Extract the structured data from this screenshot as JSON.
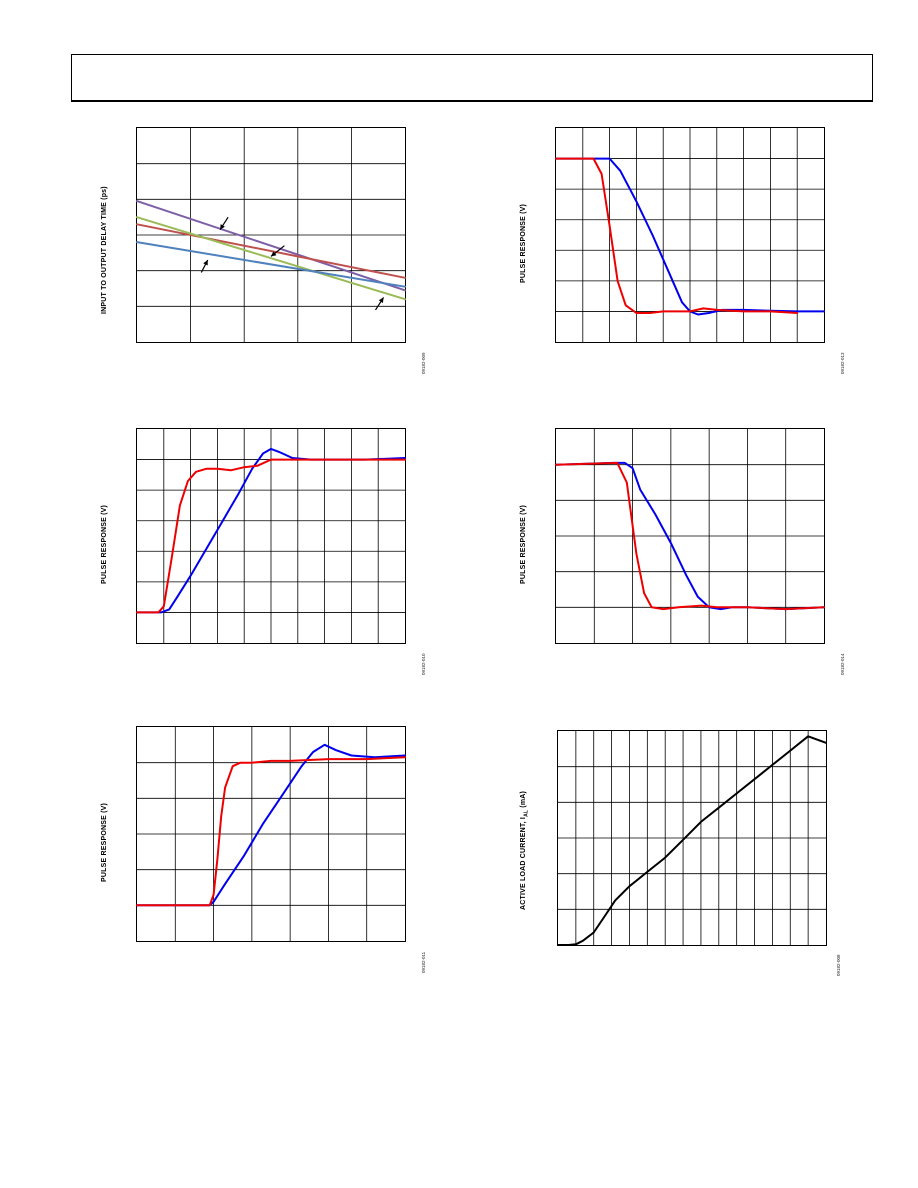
{
  "page": {
    "header": ""
  },
  "charts": [
    {
      "id": "p1",
      "ylabel": "INPUT TO OUTPUT DELAY TIME (ps)",
      "fig_id": "09182-009"
    },
    {
      "id": "p2",
      "ylabel": "PULSE RESPONSE (V)",
      "fig_id": "09182-013"
    },
    {
      "id": "p3",
      "ylabel": "PULSE RESPONSE (V)",
      "fig_id": "09182-010"
    },
    {
      "id": "p4",
      "ylabel": "PULSE RESPONSE (V)",
      "fig_id": "09182-014"
    },
    {
      "id": "p5",
      "ylabel": "PULSE RESPONSE (V)",
      "fig_id": "09182-011"
    },
    {
      "id": "p6",
      "ylabel_main": "ACTIVE LOAD CURRENT, I",
      "ylabel_sub": "AL",
      "ylabel_unit": " (mA)",
      "fig_id": "09182-008"
    }
  ],
  "chart_data": [
    {
      "type": "line",
      "title": "",
      "xlabel": "",
      "ylabel": "INPUT TO OUTPUT DELAY TIME (ps)",
      "xlim": [
        0,
        5
      ],
      "ylim": [
        0,
        6
      ],
      "grid": true,
      "series": [
        {
          "color": "#7d5fa8",
          "x": [
            0,
            5
          ],
          "y": [
            3.95,
            1.45
          ]
        },
        {
          "color": "#c0504d",
          "x": [
            0,
            5
          ],
          "y": [
            3.3,
            1.8
          ]
        },
        {
          "color": "#9bbb59",
          "x": [
            0,
            5
          ],
          "y": [
            3.5,
            1.2
          ]
        },
        {
          "color": "#4f81bd",
          "x": [
            0,
            5
          ],
          "y": [
            2.8,
            1.55
          ]
        }
      ],
      "annotations": [
        {
          "type": "arrow",
          "x1": 1.7,
          "y1": 3.5,
          "x2": 1.55,
          "y2": 3.15
        },
        {
          "type": "arrow",
          "x1": 2.75,
          "y1": 2.7,
          "x2": 2.5,
          "y2": 2.4
        },
        {
          "type": "arrow",
          "x1": 1.2,
          "y1": 1.95,
          "x2": 1.32,
          "y2": 2.3
        },
        {
          "type": "arrow",
          "x1": 4.45,
          "y1": 0.9,
          "x2": 4.6,
          "y2": 1.25
        }
      ]
    },
    {
      "type": "line",
      "title": "",
      "xlabel": "",
      "ylabel": "PULSE RESPONSE (V)",
      "xlim": [
        0,
        10
      ],
      "ylim": [
        0,
        7
      ],
      "grid": true,
      "series": [
        {
          "color": "#0000ee",
          "x": [
            0,
            2.0,
            2.4,
            3.0,
            3.6,
            4.2,
            4.7,
            5.0,
            5.3,
            5.7,
            6.2,
            7.0,
            8.0,
            9.0,
            10.0
          ],
          "y": [
            6.0,
            6.0,
            5.6,
            4.6,
            3.5,
            2.3,
            1.3,
            1.0,
            0.9,
            0.95,
            1.05,
            1.05,
            1.02,
            1.0,
            1.0
          ]
        },
        {
          "color": "#ee0000",
          "x": [
            0,
            1.4,
            1.7,
            2.0,
            2.3,
            2.6,
            3.0,
            3.5,
            4.0,
            5.0,
            5.5,
            6.0,
            7.0,
            8.0,
            9.0
          ],
          "y": [
            6.0,
            6.0,
            5.5,
            3.8,
            2.0,
            1.2,
            0.95,
            0.95,
            1.0,
            1.0,
            1.1,
            1.05,
            1.0,
            1.0,
            0.95
          ]
        }
      ]
    },
    {
      "type": "line",
      "title": "",
      "xlabel": "",
      "ylabel": "PULSE RESPONSE (V)",
      "xlim": [
        0,
        10
      ],
      "ylim": [
        0,
        7
      ],
      "grid": true,
      "series": [
        {
          "color": "#0000ee",
          "x": [
            0,
            0.9,
            1.2,
            1.5,
            2.0,
            2.6,
            3.2,
            3.8,
            4.3,
            4.7,
            5.0,
            5.3,
            5.8,
            6.5,
            7.5,
            8.5,
            10.0
          ],
          "y": [
            1.0,
            1.0,
            1.1,
            1.5,
            2.2,
            3.1,
            4.0,
            4.9,
            5.7,
            6.2,
            6.35,
            6.25,
            6.05,
            6.0,
            6.0,
            6.0,
            6.05
          ]
        },
        {
          "color": "#ee0000",
          "x": [
            0,
            0.8,
            1.0,
            1.3,
            1.6,
            1.9,
            2.2,
            2.6,
            3.0,
            3.5,
            4.0,
            4.5,
            5.0,
            6.0,
            8.0,
            10.0
          ],
          "y": [
            1.0,
            1.0,
            1.2,
            2.8,
            4.5,
            5.3,
            5.6,
            5.7,
            5.7,
            5.65,
            5.75,
            5.8,
            6.0,
            6.0,
            6.0,
            6.0
          ]
        }
      ]
    },
    {
      "type": "line",
      "title": "",
      "xlabel": "",
      "ylabel": "PULSE RESPONSE (V)",
      "xlim": [
        0,
        7
      ],
      "ylim": [
        0,
        6
      ],
      "grid": true,
      "series": [
        {
          "color": "#0000ee",
          "x": [
            0,
            1.5,
            1.8,
            2.0,
            2.2,
            2.6,
            3.0,
            3.4,
            3.7,
            4.0,
            4.3,
            4.6,
            5.0,
            6.0,
            7.0
          ],
          "y": [
            5.0,
            5.05,
            5.05,
            4.9,
            4.3,
            3.6,
            2.8,
            1.9,
            1.3,
            1.0,
            0.95,
            1.0,
            1.0,
            0.95,
            1.0
          ]
        },
        {
          "color": "#ee0000",
          "x": [
            0,
            1.6,
            1.85,
            2.1,
            2.3,
            2.5,
            2.8,
            3.2,
            3.8,
            4.2,
            5.0,
            6.0,
            7.0
          ],
          "y": [
            5.0,
            5.05,
            4.5,
            2.5,
            1.4,
            1.0,
            0.95,
            1.0,
            1.05,
            1.0,
            1.0,
            0.95,
            1.0
          ]
        }
      ]
    },
    {
      "type": "line",
      "title": "",
      "xlabel": "",
      "ylabel": "PULSE RESPONSE (V)",
      "xlim": [
        0,
        7
      ],
      "ylim": [
        0,
        6
      ],
      "grid": true,
      "series": [
        {
          "color": "#0000ee",
          "x": [
            0,
            1.9,
            2.0,
            2.3,
            2.8,
            3.3,
            3.8,
            4.3,
            4.6,
            4.9,
            5.2,
            5.6,
            6.2,
            7.0
          ],
          "y": [
            1.0,
            1.0,
            1.1,
            1.6,
            2.4,
            3.3,
            4.1,
            4.9,
            5.3,
            5.5,
            5.35,
            5.2,
            5.15,
            5.2
          ]
        },
        {
          "color": "#ee0000",
          "x": [
            0,
            1.9,
            2.0,
            2.1,
            2.2,
            2.3,
            2.5,
            2.7,
            3.0,
            3.5,
            4.0,
            5.0,
            6.0,
            7.0
          ],
          "y": [
            1.0,
            1.0,
            1.3,
            2.3,
            3.5,
            4.3,
            4.9,
            5.0,
            5.0,
            5.05,
            5.05,
            5.1,
            5.1,
            5.15
          ]
        }
      ]
    },
    {
      "type": "line",
      "title": "",
      "xlabel": "",
      "ylabel": "ACTIVE LOAD CURRENT, IAL (mA)",
      "xlim": [
        0,
        15
      ],
      "ylim": [
        0,
        6
      ],
      "grid": true,
      "series": [
        {
          "color": "#000000",
          "x": [
            0,
            0.6,
            1.0,
            1.4,
            2.0,
            2.6,
            3.2,
            4.0,
            5.0,
            6.0,
            7.0,
            8.0,
            9.0,
            10.0,
            11.0,
            12.0,
            13.0,
            14.0,
            15.0
          ],
          "y": [
            0,
            0,
            0.02,
            0.12,
            0.35,
            0.8,
            1.25,
            1.65,
            2.05,
            2.45,
            2.95,
            3.45,
            3.85,
            4.25,
            4.65,
            5.05,
            5.45,
            5.85,
            5.67
          ]
        }
      ]
    }
  ]
}
